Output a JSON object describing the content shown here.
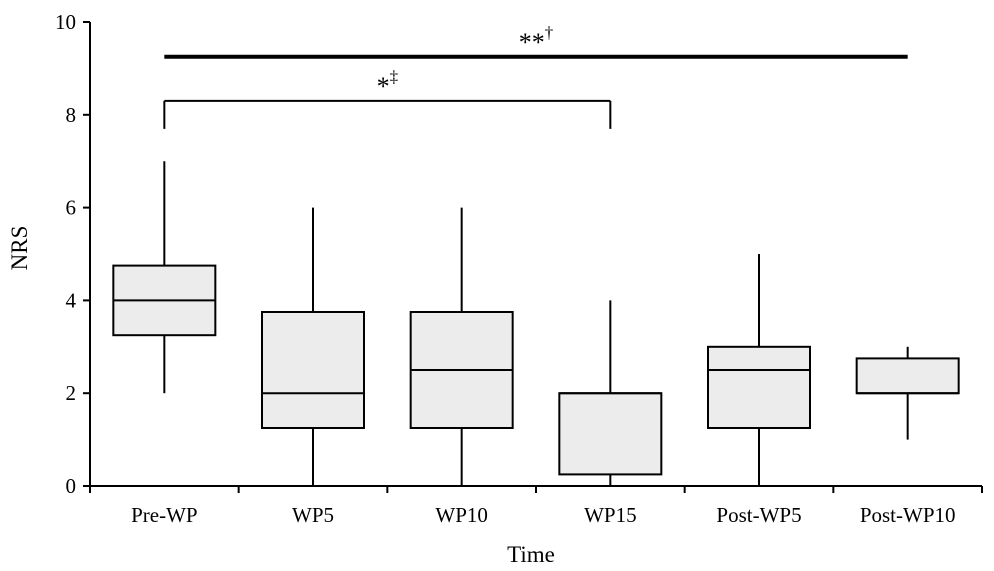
{
  "chart_data": {
    "type": "box",
    "xlabel": "Time",
    "ylabel": "NRS",
    "ylim": [
      0,
      10
    ],
    "yticks": [
      "0",
      "2",
      "4",
      "6",
      "8",
      "10"
    ],
    "grid": false,
    "box_fill": "#ececec",
    "line_color": "#000000",
    "categories": [
      "Pre-WP",
      "WP5",
      "WP10",
      "WP15",
      "Post-WP5",
      "Post-WP10"
    ],
    "boxes": [
      {
        "category": "Pre-WP",
        "min": 2,
        "q1": 3.25,
        "median": 4,
        "q3": 4.75,
        "max": 7
      },
      {
        "category": "WP5",
        "min": 0,
        "q1": 1.25,
        "median": 2,
        "q3": 3.75,
        "max": 6
      },
      {
        "category": "WP10",
        "min": 0,
        "q1": 1.25,
        "median": 2.5,
        "q3": 3.75,
        "max": 6
      },
      {
        "category": "WP15",
        "min": 0,
        "q1": 0.25,
        "median": 2,
        "q3": 2,
        "max": 4
      },
      {
        "category": "Post-WP5",
        "min": 0,
        "q1": 1.25,
        "median": 2.5,
        "q3": 3,
        "max": 5
      },
      {
        "category": "Post-WP10",
        "min": 1,
        "q1": 2,
        "median": 2,
        "q3": 2.75,
        "max": 3
      }
    ],
    "annotations": [
      {
        "from": "Pre-WP",
        "to": "Post-WP10",
        "label": "**",
        "superscript": "†",
        "style": "bar",
        "y": 9.25
      },
      {
        "from": "Pre-WP",
        "to": "WP15",
        "label": "*",
        "superscript": "‡",
        "style": "bracket",
        "y": 8.3
      }
    ]
  }
}
